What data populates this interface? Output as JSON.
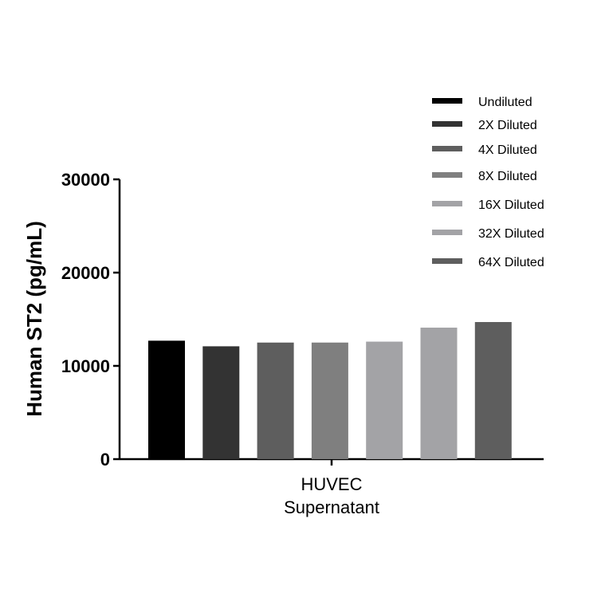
{
  "chart_data": {
    "type": "bar",
    "categories": [
      "HUVEC Supernatant"
    ],
    "category_label_lines": [
      "HUVEC",
      "Supernatant"
    ],
    "series": [
      {
        "name": "Undiluted",
        "values": [
          12700
        ],
        "color": "#000000"
      },
      {
        "name": "2X Diluted",
        "values": [
          12100
        ],
        "color": "#333333"
      },
      {
        "name": "4X Diluted",
        "values": [
          12500
        ],
        "color": "#5e5e5e"
      },
      {
        "name": "8X Diluted",
        "values": [
          12500
        ],
        "color": "#7f7f7f"
      },
      {
        "name": "16X Diluted",
        "values": [
          12600
        ],
        "color": "#a3a3a6"
      },
      {
        "name": "32X Diluted",
        "values": [
          14100
        ],
        "color": "#a3a3a6"
      },
      {
        "name": "64X Diluted",
        "values": [
          14700
        ],
        "color": "#5e5e5e"
      }
    ],
    "ylabel": "Human ST2 (pg/mL)",
    "ylim": [
      0,
      30000
    ],
    "yticks": [
      "0",
      "10000",
      "20000",
      "30000"
    ],
    "grid": false,
    "legend_position": "top-right"
  }
}
